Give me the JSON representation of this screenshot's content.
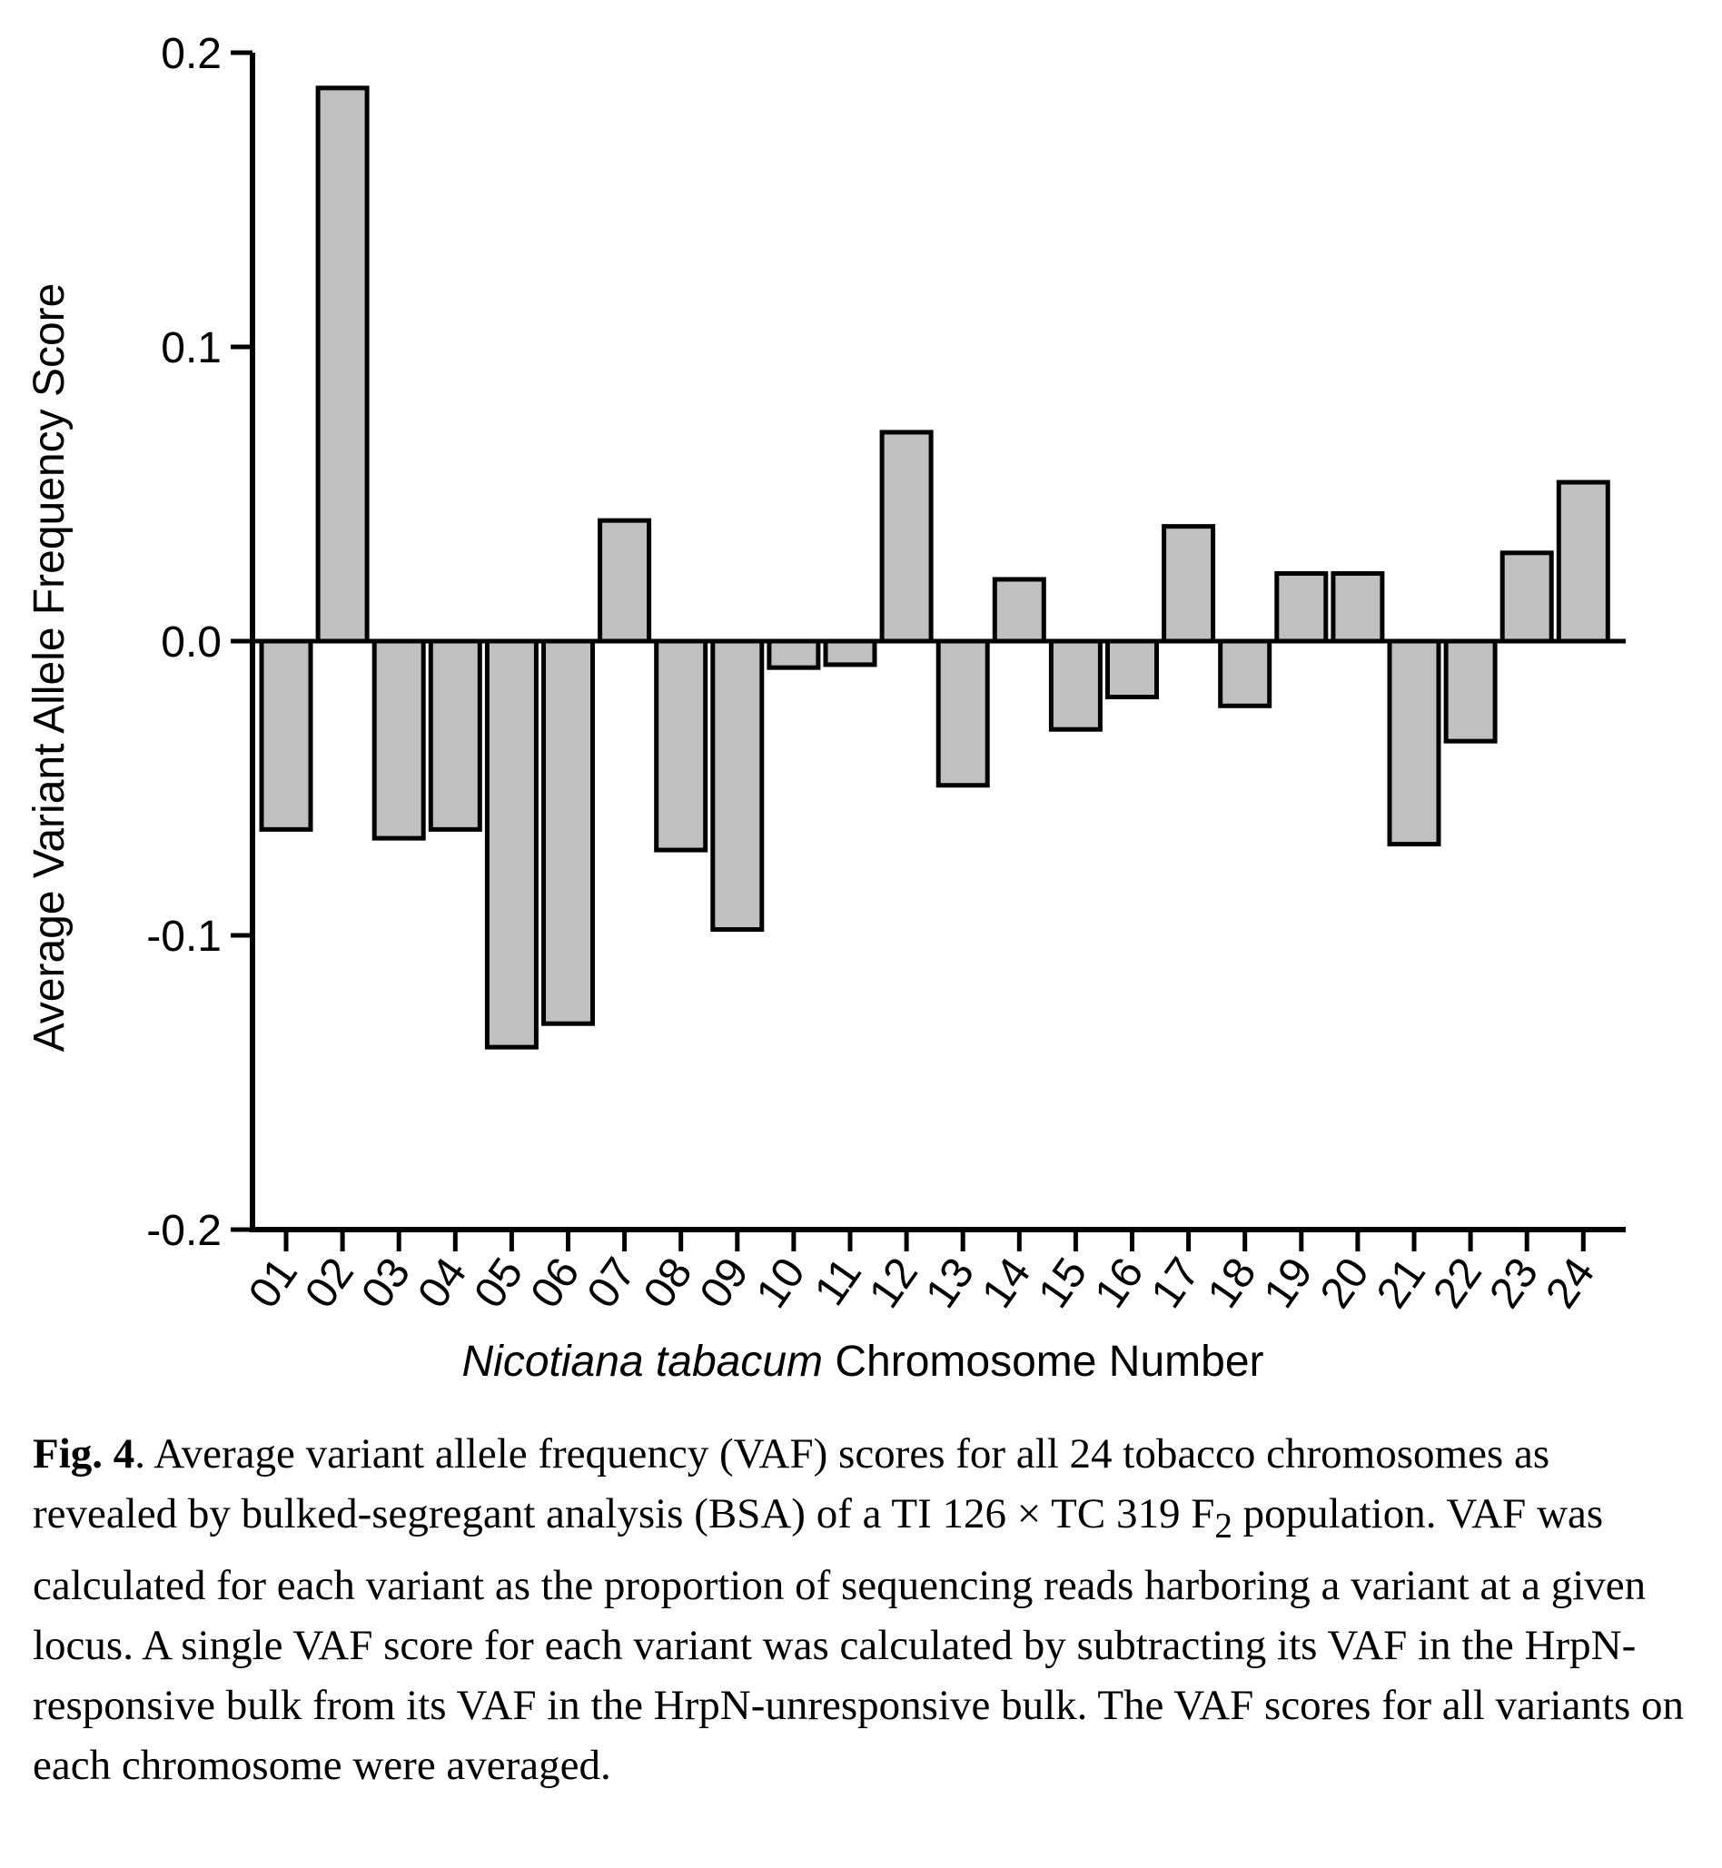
{
  "chart_data": {
    "type": "bar",
    "categories": [
      "01",
      "02",
      "03",
      "04",
      "05",
      "06",
      "07",
      "08",
      "09",
      "10",
      "11",
      "12",
      "13",
      "14",
      "15",
      "16",
      "17",
      "18",
      "19",
      "20",
      "21",
      "22",
      "23",
      "24"
    ],
    "values": [
      -0.064,
      0.188,
      -0.067,
      -0.064,
      -0.138,
      -0.13,
      0.041,
      -0.071,
      -0.098,
      -0.009,
      -0.008,
      0.071,
      -0.049,
      0.021,
      -0.03,
      -0.019,
      0.039,
      -0.022,
      0.023,
      0.023,
      -0.069,
      -0.034,
      0.03,
      0.054
    ],
    "ylabel": "Average Variant Allele Frequency Score",
    "xlabel_italic": "Nicotiana tabacum",
    "xlabel_rest": " Chromosome Number",
    "ylim": [
      -0.2,
      0.2
    ],
    "yticks": [
      "0.2",
      "0.1",
      "0.0",
      "-0.1",
      "-0.2"
    ],
    "ytick_values": [
      0.2,
      0.1,
      0.0,
      -0.1,
      -0.2
    ],
    "bar_color": "#c0c0c0",
    "grid": false
  },
  "caption": {
    "label": "Fig. 4",
    "part1": ". Average variant allele frequency (VAF) scores for all 24 tobacco chromosomes as revealed by bulked-segregant analysis (BSA) of a TI 126 × TC 319 F",
    "subscript": "2",
    "part2": " population. VAF was calculated for each variant as the proportion of sequencing reads harboring a variant at a given locus. A single VAF score for each variant was calculated by subtracting its VAF in the HrpN-responsive bulk from its VAF in the HrpN-unresponsive bulk. The VAF scores for all variants on each chromosome were averaged."
  }
}
